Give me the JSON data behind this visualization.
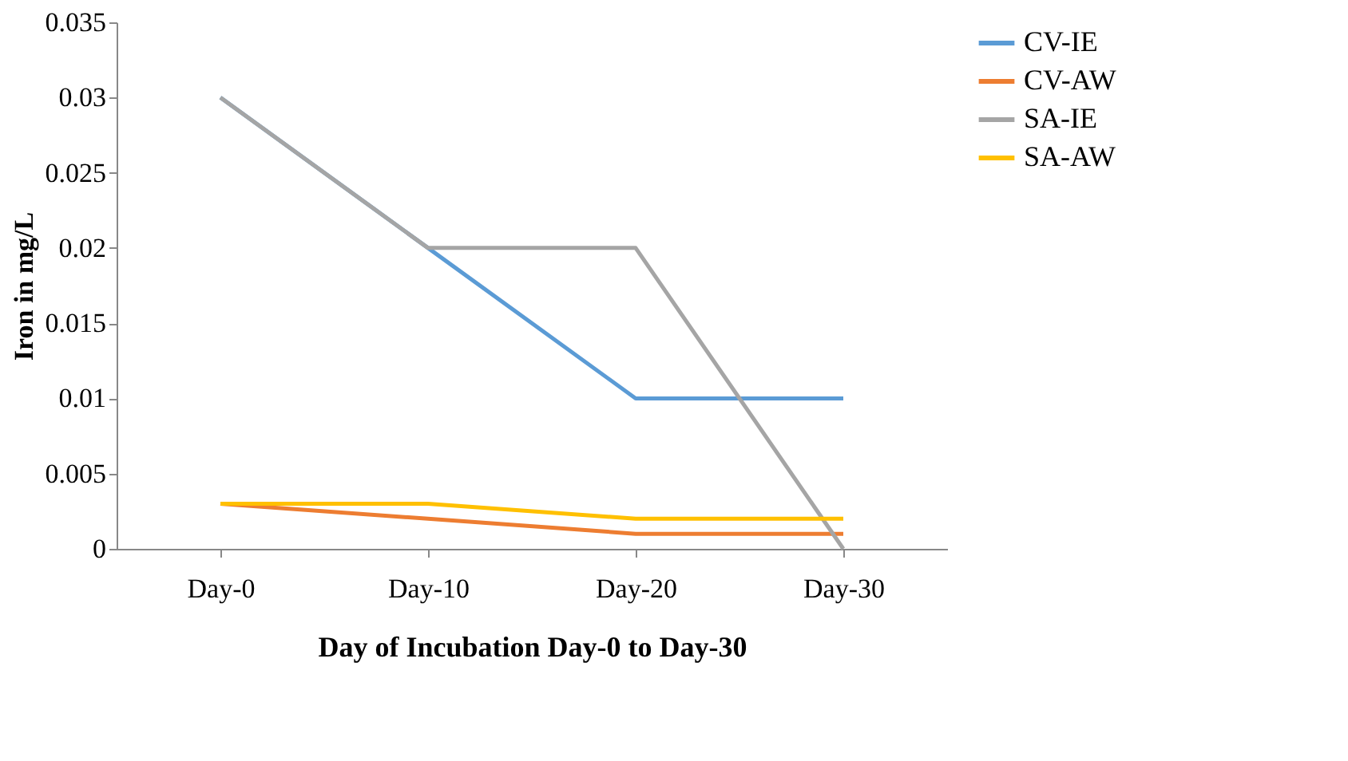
{
  "chart_data": {
    "type": "line",
    "xlabel": "Day of Incubation Day-0 to Day-30",
    "ylabel": "Iron in mg/L",
    "categories": [
      "Day-0",
      "Day-10",
      "Day-20",
      "Day-30"
    ],
    "series": [
      {
        "name": "CV-IE",
        "color": "#5b9bd5",
        "values": [
          0.03,
          0.02,
          0.01,
          0.01
        ]
      },
      {
        "name": "CV-AW",
        "color": "#ed7d31",
        "values": [
          0.003,
          0.002,
          0.001,
          0.001
        ]
      },
      {
        "name": "SA-IE",
        "color": "#a5a5a5",
        "values": [
          0.03,
          0.02,
          0.02,
          0
        ]
      },
      {
        "name": "SA-AW",
        "color": "#ffc000",
        "values": [
          0.003,
          0.003,
          0.002,
          0.002
        ]
      }
    ],
    "ylim": [
      0,
      0.035
    ],
    "yticks": [
      0,
      0.005,
      0.01,
      0.015,
      0.02,
      0.025,
      0.03,
      0.035
    ],
    "grid": false,
    "legend": "right",
    "marker": "none",
    "line_style": "solid"
  }
}
